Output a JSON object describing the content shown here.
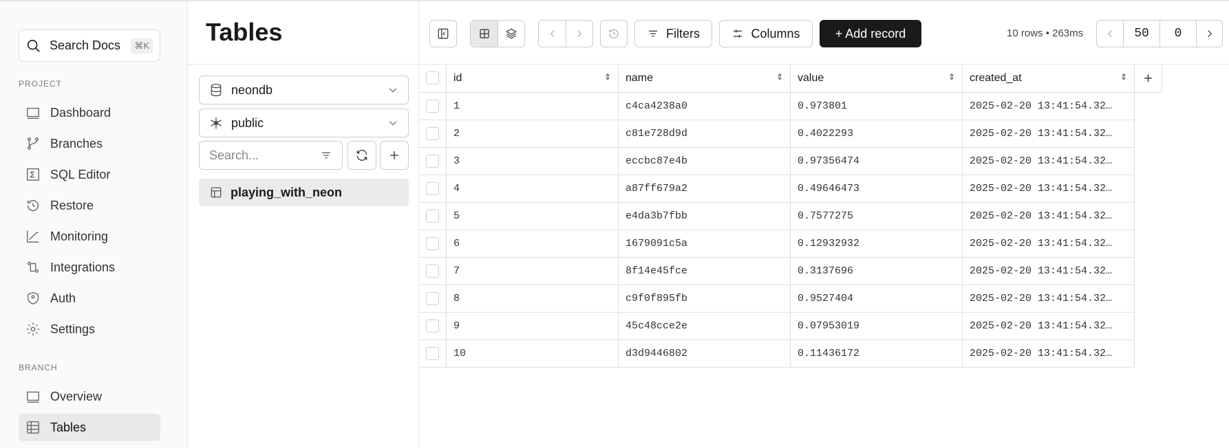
{
  "sidebar": {
    "search": {
      "label": "Search Docs",
      "shortcut": "⌘K"
    },
    "project_label": "PROJECT",
    "project_items": [
      {
        "label": "Dashboard",
        "icon": "dashboard-icon"
      },
      {
        "label": "Branches",
        "icon": "branch-icon"
      },
      {
        "label": "SQL Editor",
        "icon": "sql-editor-icon"
      },
      {
        "label": "Restore",
        "icon": "restore-icon"
      },
      {
        "label": "Monitoring",
        "icon": "monitoring-icon"
      },
      {
        "label": "Integrations",
        "icon": "integrations-icon"
      },
      {
        "label": "Auth",
        "icon": "auth-icon"
      },
      {
        "label": "Settings",
        "icon": "gear-icon"
      }
    ],
    "branch_label": "BRANCH",
    "branch_items": [
      {
        "label": "Overview",
        "icon": "overview-icon"
      },
      {
        "label": "Tables",
        "icon": "table-icon",
        "active": true
      }
    ]
  },
  "panel": {
    "title": "Tables",
    "database": "neondb",
    "schema": "public",
    "search_placeholder": "Search...",
    "tables": [
      "playing_with_neon"
    ]
  },
  "toolbar": {
    "filters": "Filters",
    "columns": "Columns",
    "add_record": "+ Add record",
    "rows_info": "10 rows • 263ms",
    "limit": "50",
    "offset": "0"
  },
  "grid": {
    "columns": [
      "id",
      "name",
      "value",
      "created_at"
    ],
    "rows": [
      [
        "1",
        "c4ca4238a0",
        "0.973801",
        "2025-02-20 13:41:54.32…"
      ],
      [
        "2",
        "c81e728d9d",
        "0.4022293",
        "2025-02-20 13:41:54.32…"
      ],
      [
        "3",
        "eccbc87e4b",
        "0.97356474",
        "2025-02-20 13:41:54.32…"
      ],
      [
        "4",
        "a87ff679a2",
        "0.49646473",
        "2025-02-20 13:41:54.32…"
      ],
      [
        "5",
        "e4da3b7fbb",
        "0.7577275",
        "2025-02-20 13:41:54.32…"
      ],
      [
        "6",
        "1679091c5a",
        "0.12932932",
        "2025-02-20 13:41:54.32…"
      ],
      [
        "7",
        "8f14e45fce",
        "0.3137696",
        "2025-02-20 13:41:54.32…"
      ],
      [
        "8",
        "c9f0f895fb",
        "0.9527404",
        "2025-02-20 13:41:54.32…"
      ],
      [
        "9",
        "45c48cce2e",
        "0.07953019",
        "2025-02-20 13:41:54.32…"
      ],
      [
        "10",
        "d3d9446802",
        "0.11436172",
        "2025-02-20 13:41:54.32…"
      ]
    ]
  }
}
